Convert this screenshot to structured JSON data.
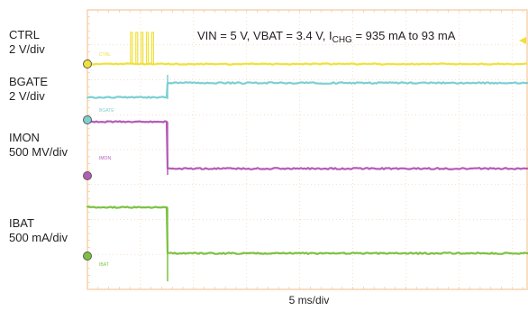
{
  "channels": [
    {
      "name": "CTRL",
      "scale": "2 V/div",
      "color": "#f0e13a",
      "tag": "CTRL"
    },
    {
      "name": "BGATE",
      "scale": "2 V/div",
      "color": "#7dcfd2",
      "tag": "BGATE"
    },
    {
      "name": "IMON",
      "scale": "500 MV/div",
      "color": "#b45cb6",
      "tag": "IMON"
    },
    {
      "name": "IBAT",
      "scale": "500 mA/div",
      "color": "#7cc142",
      "tag": "IBAT"
    }
  ],
  "title": {
    "prefix": "VIN = 5 V, VBAT = 3.4 V, I",
    "sub": "CHG",
    "suffix": " = 935 mA to 93 mA"
  },
  "time_scale": "5 ms/div",
  "chart_data": {
    "type": "line",
    "title": "VIN = 5 V, VBAT = 3.4 V, ICHG = 935 mA to 93 mA",
    "xlabel": "5 ms/div",
    "grid": true,
    "x_unit": "ms",
    "series": [
      {
        "name": "CTRL",
        "x": [
          0,
          8.5,
          8.6,
          12,
          50
        ],
        "values": [
          0,
          0,
          0,
          0,
          0
        ],
        "note_pulses_x": [
          8.5,
          12
        ],
        "high_level": 5
      },
      {
        "name": "BGATE",
        "x": [
          0,
          12.9,
          13.0,
          50
        ],
        "values": [
          0,
          0,
          4,
          4
        ]
      },
      {
        "name": "IMON",
        "x": [
          0,
          12.9,
          13.0,
          50
        ],
        "values": [
          0.935,
          0.935,
          0.093,
          0.093
        ]
      },
      {
        "name": "IBAT",
        "x": [
          0,
          12.9,
          13.0,
          50
        ],
        "values": [
          0.935,
          0.935,
          0.093,
          0.093
        ]
      }
    ]
  }
}
